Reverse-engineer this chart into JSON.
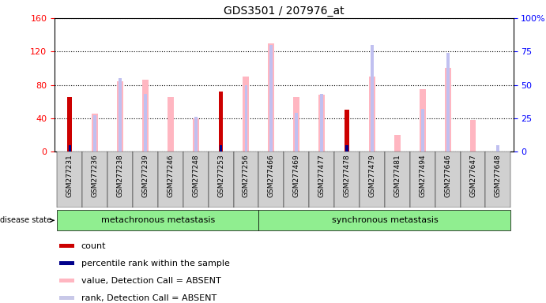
{
  "title": "GDS3501 / 207976_at",
  "samples": [
    "GSM277231",
    "GSM277236",
    "GSM277238",
    "GSM277239",
    "GSM277246",
    "GSM277248",
    "GSM277253",
    "GSM277256",
    "GSM277466",
    "GSM277469",
    "GSM277477",
    "GSM277478",
    "GSM277479",
    "GSM277481",
    "GSM277494",
    "GSM277646",
    "GSM277647",
    "GSM277648"
  ],
  "n_meta": 8,
  "n_sync": 10,
  "count_values": [
    65,
    0,
    0,
    0,
    0,
    0,
    72,
    0,
    0,
    0,
    0,
    50,
    0,
    0,
    0,
    0,
    0,
    0
  ],
  "percentile_values": [
    5,
    0,
    0,
    0,
    0,
    0,
    5,
    0,
    0,
    0,
    0,
    5,
    0,
    0,
    0,
    0,
    0,
    0
  ],
  "value_absent": [
    0,
    45,
    84,
    86,
    65,
    40,
    0,
    90,
    130,
    65,
    68,
    0,
    90,
    20,
    75,
    100,
    38,
    0
  ],
  "rank_absent": [
    0,
    27,
    55,
    43,
    0,
    26,
    0,
    50,
    80,
    29,
    43,
    0,
    80,
    0,
    32,
    74,
    0,
    5
  ],
  "ylim_left": [
    0,
    160
  ],
  "ylim_right": [
    0,
    100
  ],
  "yticks_left": [
    0,
    40,
    80,
    120,
    160
  ],
  "ytick_labels_left": [
    "0",
    "40",
    "80",
    "120",
    "160"
  ],
  "yticks_right": [
    0,
    25,
    50,
    75,
    100
  ],
  "ytick_labels_right": [
    "0",
    "25",
    "50",
    "75",
    "100%"
  ],
  "tick_bg_color": "#d0d0d0",
  "group_color": "#90ee90",
  "legend_items": [
    {
      "label": "count",
      "color": "#cc0000"
    },
    {
      "label": "percentile rank within the sample",
      "color": "#00008b"
    },
    {
      "label": "value, Detection Call = ABSENT",
      "color": "#ffb6c1"
    },
    {
      "label": "rank, Detection Call = ABSENT",
      "color": "#c8c8e8"
    }
  ]
}
